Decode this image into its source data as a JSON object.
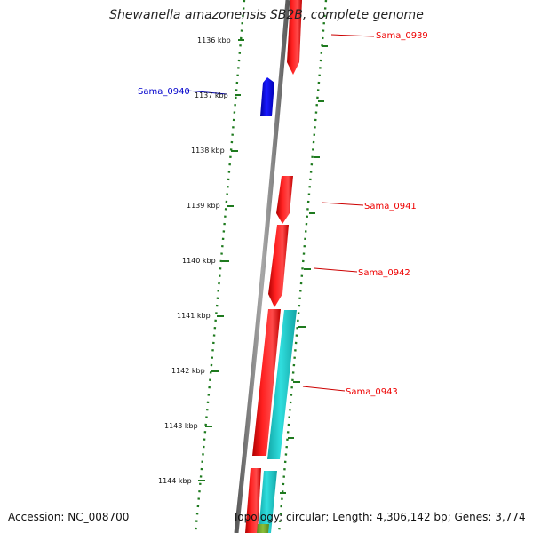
{
  "title": "Shewanella amazonensis SB2B, complete genome",
  "footer": {
    "accession": "Accession: NC_008700",
    "topology": "Topology: circular; Length: 4,306,142 bp; Genes: 3,774"
  },
  "scale_labels": [
    "1136 kbp",
    "1137 kbp",
    "1138 kbp",
    "1139 kbp",
    "1140 kbp",
    "1141 kbp",
    "1142 kbp",
    "1143 kbp",
    "1144 kbp"
  ],
  "genes": [
    {
      "label": "Sama_0939",
      "color": "#ee0000"
    },
    {
      "label": "Sama_0940",
      "color": "#0000cc"
    },
    {
      "label": "Sama_0941",
      "color": "#ee0000"
    },
    {
      "label": "Sama_0942",
      "color": "#ee0000"
    },
    {
      "label": "Sama_0943",
      "color": "#ee0000"
    }
  ],
  "colors": {
    "forward_cds": "#ff0000",
    "reverse_cds": "#0000ee",
    "other_feature": "#20c8c8",
    "backbone": "#808080",
    "scale_dots": "#1e7a1e"
  }
}
